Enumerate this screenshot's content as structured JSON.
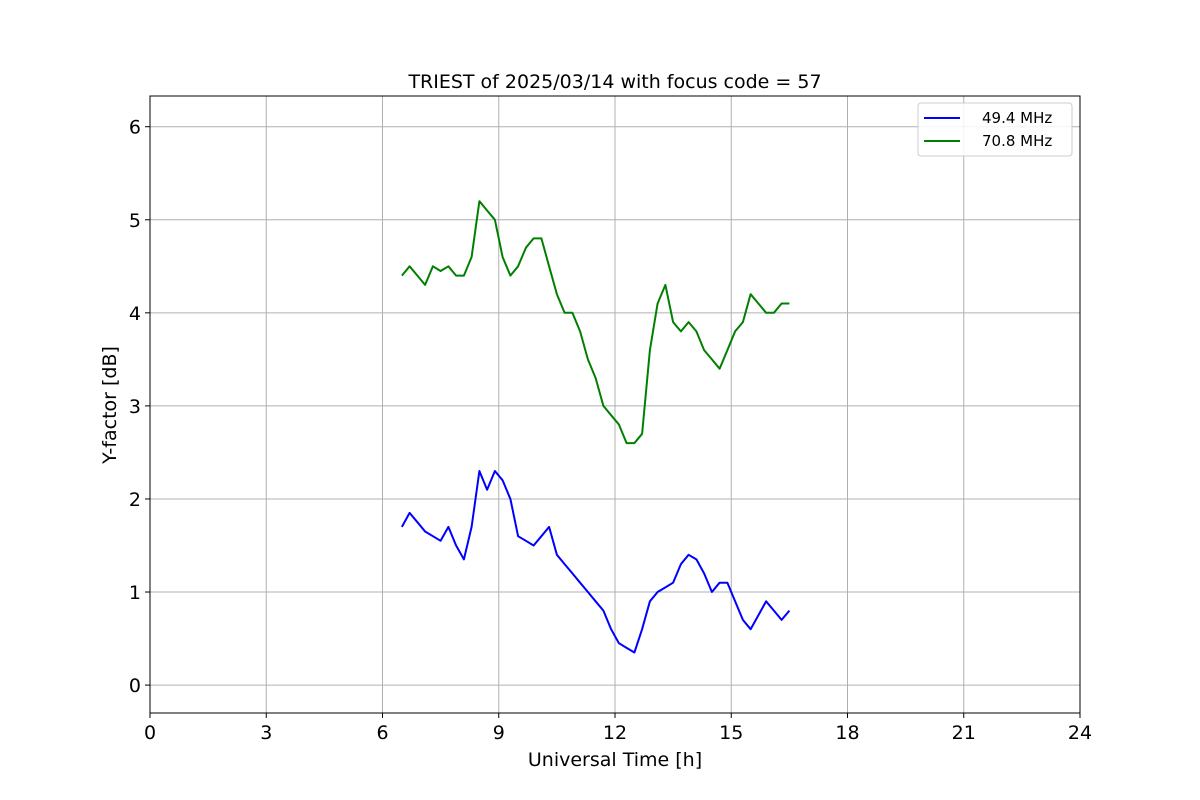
{
  "chart_data": {
    "type": "line",
    "title": "TRIEST of 2025/03/14 with focus code = 57",
    "xlabel": "Universal Time [h]",
    "ylabel": "Y-factor [dB]",
    "xlim": [
      0,
      24
    ],
    "ylim": [
      -0.3,
      6.33
    ],
    "xticks": [
      0,
      3,
      6,
      9,
      12,
      15,
      18,
      21,
      24
    ],
    "yticks": [
      0,
      1,
      2,
      3,
      4,
      5,
      6
    ],
    "grid": true,
    "legend_position": "top-right",
    "series": [
      {
        "name": "49.4 MHz",
        "color": "#0000ff",
        "x": [
          6.5,
          6.7,
          6.9,
          7.1,
          7.3,
          7.5,
          7.7,
          7.9,
          8.1,
          8.3,
          8.5,
          8.7,
          8.9,
          9.1,
          9.3,
          9.5,
          9.7,
          9.9,
          10.1,
          10.3,
          10.5,
          10.7,
          10.9,
          11.1,
          11.3,
          11.5,
          11.7,
          11.9,
          12.1,
          12.3,
          12.5,
          12.7,
          12.9,
          13.1,
          13.3,
          13.5,
          13.7,
          13.9,
          14.1,
          14.3,
          14.5,
          14.7,
          14.9,
          15.1,
          15.3,
          15.5,
          15.7,
          15.9,
          16.1,
          16.3,
          16.5
        ],
        "y": [
          1.7,
          1.85,
          1.75,
          1.65,
          1.6,
          1.55,
          1.7,
          1.5,
          1.35,
          1.7,
          2.3,
          2.1,
          2.3,
          2.2,
          2.0,
          1.6,
          1.55,
          1.5,
          1.6,
          1.7,
          1.4,
          1.3,
          1.2,
          1.1,
          1.0,
          0.9,
          0.8,
          0.6,
          0.45,
          0.4,
          0.35,
          0.6,
          0.9,
          1.0,
          1.05,
          1.1,
          1.3,
          1.4,
          1.35,
          1.2,
          1.0,
          1.1,
          1.1,
          0.9,
          0.7,
          0.6,
          0.75,
          0.9,
          0.8,
          0.7,
          0.8
        ]
      },
      {
        "name": "70.8 MHz",
        "color": "#008000",
        "x": [
          6.5,
          6.7,
          6.9,
          7.1,
          7.3,
          7.5,
          7.7,
          7.9,
          8.1,
          8.3,
          8.5,
          8.7,
          8.9,
          9.1,
          9.3,
          9.5,
          9.7,
          9.9,
          10.1,
          10.3,
          10.5,
          10.7,
          10.9,
          11.1,
          11.3,
          11.5,
          11.7,
          11.9,
          12.1,
          12.3,
          12.5,
          12.7,
          12.9,
          13.1,
          13.3,
          13.5,
          13.7,
          13.9,
          14.1,
          14.3,
          14.5,
          14.7,
          14.9,
          15.1,
          15.3,
          15.5,
          15.7,
          15.9,
          16.1,
          16.3,
          16.5
        ],
        "y": [
          4.4,
          4.5,
          4.4,
          4.3,
          4.5,
          4.45,
          4.5,
          4.4,
          4.4,
          4.6,
          5.2,
          5.1,
          5.0,
          4.6,
          4.4,
          4.5,
          4.7,
          4.8,
          4.8,
          4.5,
          4.2,
          4.0,
          4.0,
          3.8,
          3.5,
          3.3,
          3.0,
          2.9,
          2.8,
          2.6,
          2.6,
          2.7,
          3.6,
          4.1,
          4.3,
          3.9,
          3.8,
          3.9,
          3.8,
          3.6,
          3.5,
          3.4,
          3.6,
          3.8,
          3.9,
          4.2,
          4.1,
          4.0,
          4.0,
          4.1,
          4.1
        ]
      }
    ]
  }
}
